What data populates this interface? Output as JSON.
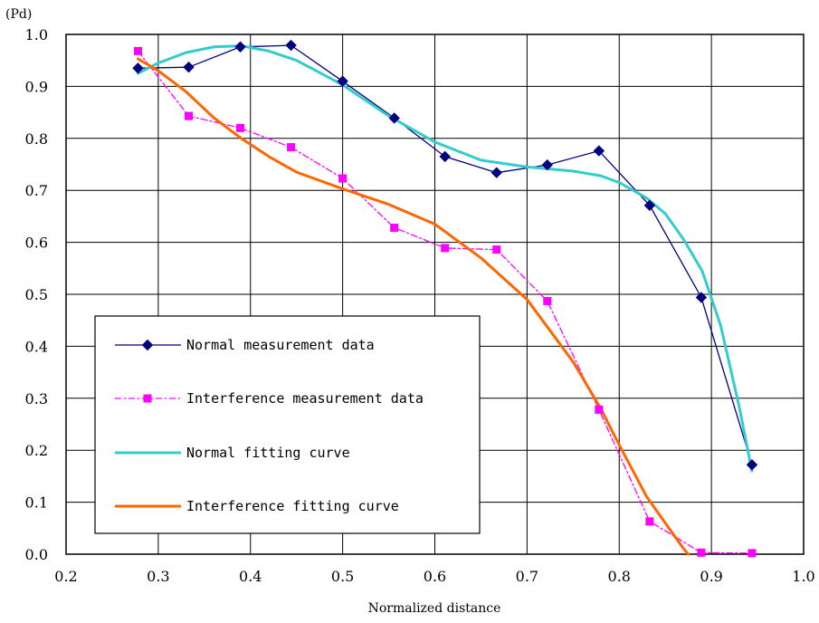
{
  "chart_data": {
    "type": "line",
    "y_unit_label": "(Pd)",
    "xlabel": "Normalized distance",
    "xlim": [
      0.2,
      1.0
    ],
    "ylim": [
      0.0,
      1.0
    ],
    "x_ticks": [
      "0.2",
      "0.3",
      "0.4",
      "0.5",
      "0.6",
      "0.7",
      "0.8",
      "0.9",
      "1.0"
    ],
    "y_ticks": [
      "0.0",
      "0.1",
      "0.2",
      "0.3",
      "0.4",
      "0.5",
      "0.6",
      "0.7",
      "0.8",
      "0.9",
      "1.0"
    ],
    "grid": true,
    "legend_position": "bottom-left",
    "series": [
      {
        "name": "Normal measurement data",
        "color": "#000080",
        "style": "solid-with-diamond-markers",
        "x": [
          0.278,
          0.333,
          0.389,
          0.444,
          0.5,
          0.556,
          0.611,
          0.667,
          0.722,
          0.778,
          0.833,
          0.889,
          0.944
        ],
        "y": [
          0.935,
          0.937,
          0.976,
          0.979,
          0.91,
          0.839,
          0.765,
          0.734,
          0.749,
          0.776,
          0.671,
          0.494,
          0.172
        ]
      },
      {
        "name": "Interference measurement data",
        "color": "#FF00FF",
        "style": "dashdot-with-square-markers",
        "x": [
          0.278,
          0.333,
          0.389,
          0.444,
          0.5,
          0.556,
          0.611,
          0.667,
          0.722,
          0.778,
          0.833,
          0.889,
          0.944
        ],
        "y": [
          0.968,
          0.843,
          0.82,
          0.783,
          0.723,
          0.628,
          0.589,
          0.586,
          0.487,
          0.278,
          0.063,
          0.003,
          0.002
        ]
      },
      {
        "name": "Normal fitting curve",
        "color": "#33CCCC",
        "style": "solid-thick",
        "x": [
          0.278,
          0.3,
          0.33,
          0.36,
          0.39,
          0.42,
          0.45,
          0.5,
          0.55,
          0.6,
          0.65,
          0.7,
          0.75,
          0.78,
          0.8,
          0.83,
          0.85,
          0.87,
          0.89,
          0.91,
          0.93,
          0.944
        ],
        "y": [
          0.925,
          0.945,
          0.965,
          0.976,
          0.978,
          0.968,
          0.95,
          0.903,
          0.843,
          0.793,
          0.758,
          0.745,
          0.737,
          0.728,
          0.715,
          0.685,
          0.655,
          0.605,
          0.545,
          0.44,
          0.285,
          0.16
        ]
      },
      {
        "name": "Interference fitting curve",
        "color": "#FF6600",
        "style": "solid-thick",
        "x": [
          0.278,
          0.3,
          0.33,
          0.36,
          0.39,
          0.42,
          0.45,
          0.5,
          0.55,
          0.6,
          0.65,
          0.7,
          0.75,
          0.78,
          0.8,
          0.83,
          0.85,
          0.87,
          0.875
        ],
        "y": [
          0.953,
          0.93,
          0.89,
          0.84,
          0.8,
          0.765,
          0.735,
          0.703,
          0.673,
          0.635,
          0.57,
          0.49,
          0.37,
          0.28,
          0.21,
          0.11,
          0.06,
          0.01,
          0.0
        ]
      }
    ]
  }
}
